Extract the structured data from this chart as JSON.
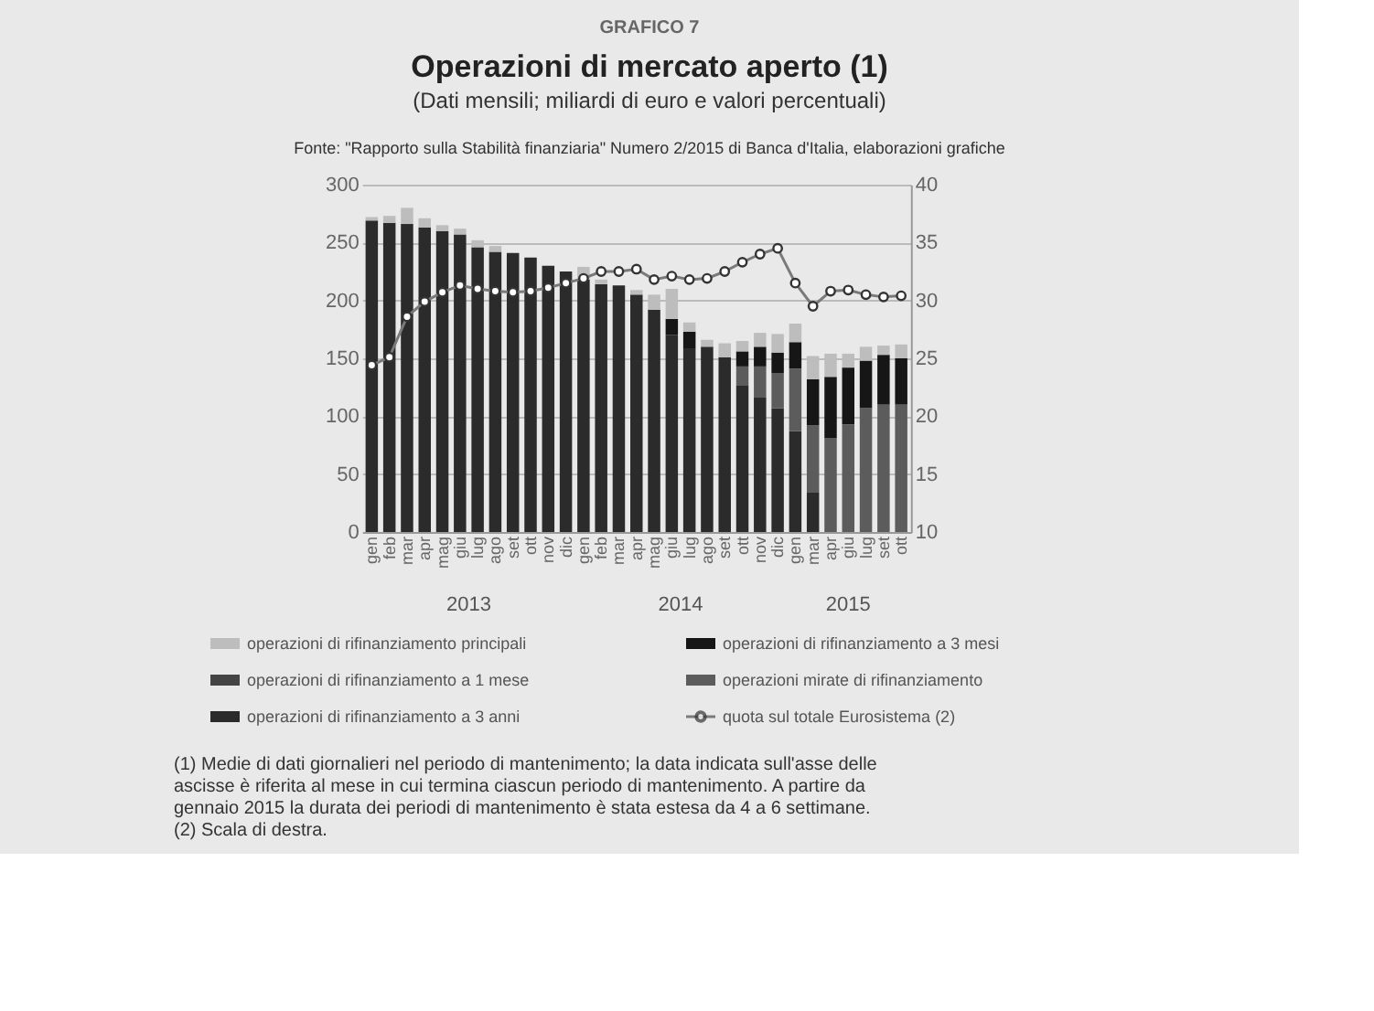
{
  "chart_data": {
    "type": "bar",
    "stacked": true,
    "title": "Operazioni di mercato aperto (1)",
    "subtitle": "(Dati mensili; miliardi di euro e valori percentuali)",
    "annotations": [
      "GRAFICO 7",
      "Fonte: \"Rapporto sulla Stabilità finanziaria\" Numero 2/2015 di Banca d'Italia, elaborazioni grafiche",
      "2013",
      "2014",
      "2015",
      "(1) Medie di dati giornalieri nel periodo di mantenimento; la data indicata sull'asse delle ascisse è riferita al mese in cui termina ciascun periodo di mantenimento. A partire da gennaio 2015 la durata dei periodi di mantenimento è stata estesa da 4 a 6 settimane.",
      "(2) Scala di destra."
    ],
    "categories": [
      "gen",
      "feb",
      "mar",
      "apr",
      "mag",
      "giu",
      "lug",
      "ago",
      "set",
      "ott",
      "nov",
      "dic",
      "gen",
      "feb",
      "mar",
      "apr",
      "mag",
      "giu",
      "lug",
      "ago",
      "set",
      "ott",
      "nov",
      "dic",
      "gen",
      "mar",
      "apr",
      "giu",
      "lug",
      "set",
      "ott"
    ],
    "series": [
      {
        "name": "operazioni di rifinanziamento a 3 anni",
        "color": "#2b2b2b",
        "values": [
          269,
          267,
          266,
          263,
          260,
          257,
          246,
          242,
          241,
          237,
          230,
          225,
          218,
          214,
          213,
          205,
          192,
          170,
          158,
          160,
          151,
          127,
          116,
          107,
          87,
          34,
          0,
          0,
          0,
          0,
          0
        ]
      },
      {
        "name": "operazioni mirate di rifinanziamento",
        "color": "#5c5c5c",
        "values": [
          0,
          0,
          0,
          0,
          0,
          0,
          0,
          0,
          0,
          0,
          0,
          0,
          0,
          0,
          0,
          0,
          0,
          0,
          0,
          0,
          0,
          16,
          27,
          30,
          54,
          58,
          81,
          93,
          107,
          110,
          110
        ]
      },
      {
        "name": "operazioni di rifinanziamento a 1 mese",
        "color": "#444444",
        "values": [
          0,
          0,
          0,
          0,
          0,
          0,
          0,
          0,
          0,
          0,
          0,
          0,
          0,
          0,
          0,
          0,
          0,
          0,
          0,
          0,
          0,
          0,
          0,
          0,
          0,
          0,
          0,
          0,
          0,
          0,
          0
        ]
      },
      {
        "name": "operazioni di rifinanziamento a 3 mesi",
        "color": "#161616",
        "values": [
          0,
          0,
          0,
          0,
          0,
          0,
          0,
          0,
          0,
          0,
          0,
          0,
          0,
          0,
          0,
          0,
          0,
          14,
          15,
          0,
          0,
          13,
          17,
          18,
          23,
          40,
          53,
          49,
          41,
          43,
          40
        ]
      },
      {
        "name": "operazioni di rifinanziamento principali",
        "color": "#bdbdbd",
        "values": [
          3,
          6,
          14,
          8,
          5,
          5,
          6,
          5,
          0,
          0,
          0,
          0,
          11,
          4,
          0,
          4,
          13,
          26,
          8,
          6,
          12,
          9,
          12,
          16,
          16,
          20,
          20,
          12,
          12,
          8,
          12
        ]
      },
      {
        "name": "quota sul totale Eurosistema (2)",
        "type": "line",
        "axis": "y2",
        "color": "#7a7a7a",
        "marker": "circle",
        "line_style": "solid",
        "values": [
          24.4,
          25.1,
          28.6,
          29.9,
          30.7,
          31.3,
          31.0,
          30.8,
          30.7,
          30.8,
          31.1,
          31.5,
          31.9,
          32.5,
          32.5,
          32.7,
          31.8,
          32.1,
          31.8,
          31.9,
          32.5,
          33.3,
          34.0,
          34.5,
          31.5,
          29.5,
          30.8,
          30.9,
          30.5,
          30.3,
          30.4
        ]
      }
    ],
    "ylim": [
      0,
      300
    ],
    "yticks": [
      0,
      50,
      100,
      150,
      200,
      250,
      300
    ],
    "y2lim": [
      10,
      40
    ],
    "y2ticks": [
      10,
      15,
      20,
      25,
      30,
      35,
      40
    ],
    "grid": "y",
    "legend": "bottom"
  }
}
